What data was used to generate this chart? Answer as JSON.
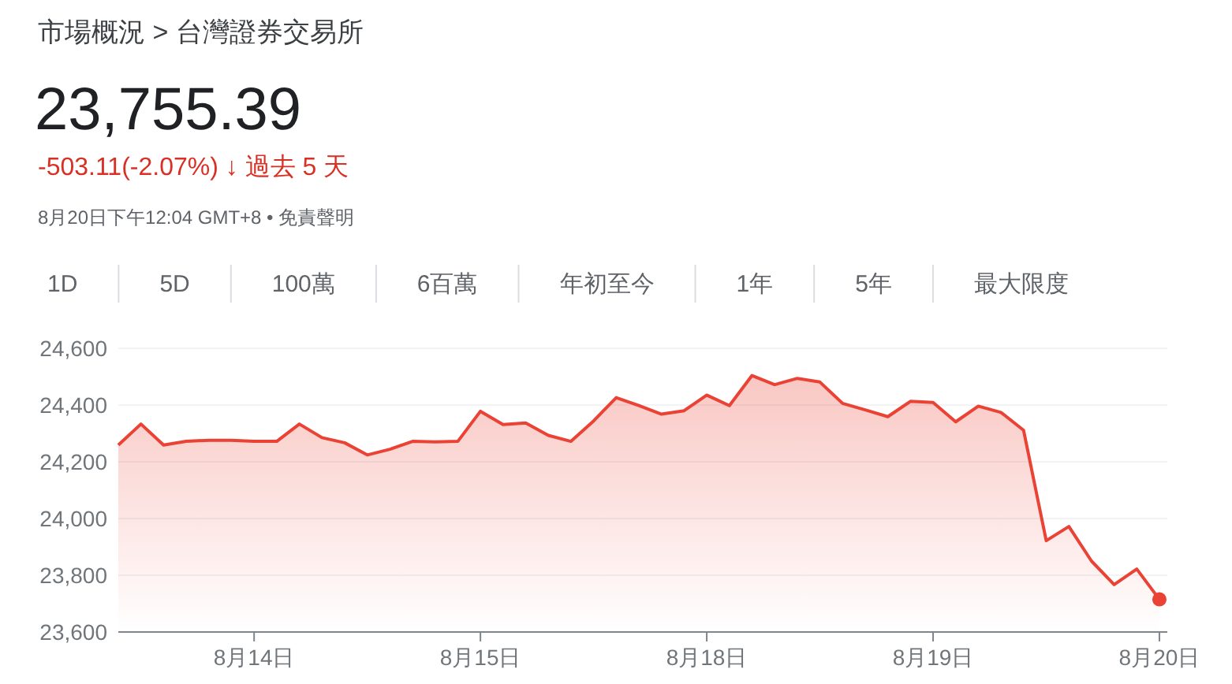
{
  "chart_data": {
    "type": "area",
    "title": "市場概況 > 台灣證券交易所",
    "subtitle": "23,755.39",
    "annotations": [
      "-503.11(-2.07%) ↓ 過去 5 天",
      "8月20日下午12:04 GMT+8 • 免責聲明",
      "1D",
      "5D",
      "100萬",
      "6百萬",
      "年初至今",
      "1年",
      "5年",
      "最大限度"
    ],
    "categories": [
      null,
      null,
      null,
      null,
      null,
      null,
      "8月14日",
      null,
      null,
      null,
      null,
      null,
      null,
      null,
      null,
      null,
      "8月15日",
      null,
      null,
      null,
      null,
      null,
      null,
      null,
      null,
      null,
      "8月18日",
      null,
      null,
      null,
      null,
      null,
      null,
      null,
      null,
      null,
      "8月19日",
      null,
      null,
      null,
      null,
      null,
      null,
      null,
      null,
      null,
      "8月20日"
    ],
    "ylim": [
      23600,
      24600
    ],
    "yticks": [
      {
        "value": 23600,
        "label": "23,600"
      },
      {
        "value": 23800,
        "label": "23,800"
      },
      {
        "value": 24000,
        "label": "24,000"
      },
      {
        "value": 24200,
        "label": "24,200"
      },
      {
        "value": 24400,
        "label": "24,400"
      },
      {
        "value": 24600,
        "label": "24,600"
      }
    ],
    "grid": "y",
    "series": [
      {
        "color": "#ea4335",
        "values": [
          24259,
          24333,
          24259,
          24272,
          24276,
          24276,
          24272,
          24272,
          24333,
          24285,
          24267,
          24224,
          24244,
          24272,
          24270,
          24272,
          24378,
          24331,
          24337,
          24293,
          24272,
          24344,
          24426,
          24398,
          24368,
          24380,
          24435,
          24398,
          24504,
          24472,
          24494,
          24481,
          24406,
          24383,
          24359,
          24413,
          24409,
          24341,
          24396,
          24374,
          24311,
          23922,
          23972,
          23850,
          23767,
          23822,
          23715
        ]
      },
      {
        "type": "scatter",
        "color": "#ea4335",
        "marker": "circle",
        "values": [
          null,
          null,
          null,
          null,
          null,
          null,
          null,
          null,
          null,
          null,
          null,
          null,
          null,
          null,
          null,
          null,
          null,
          null,
          null,
          null,
          null,
          null,
          null,
          null,
          null,
          null,
          null,
          null,
          null,
          null,
          null,
          null,
          null,
          null,
          null,
          null,
          null,
          null,
          null,
          null,
          null,
          null,
          null,
          null,
          null,
          null,
          23715
        ]
      }
    ]
  }
}
